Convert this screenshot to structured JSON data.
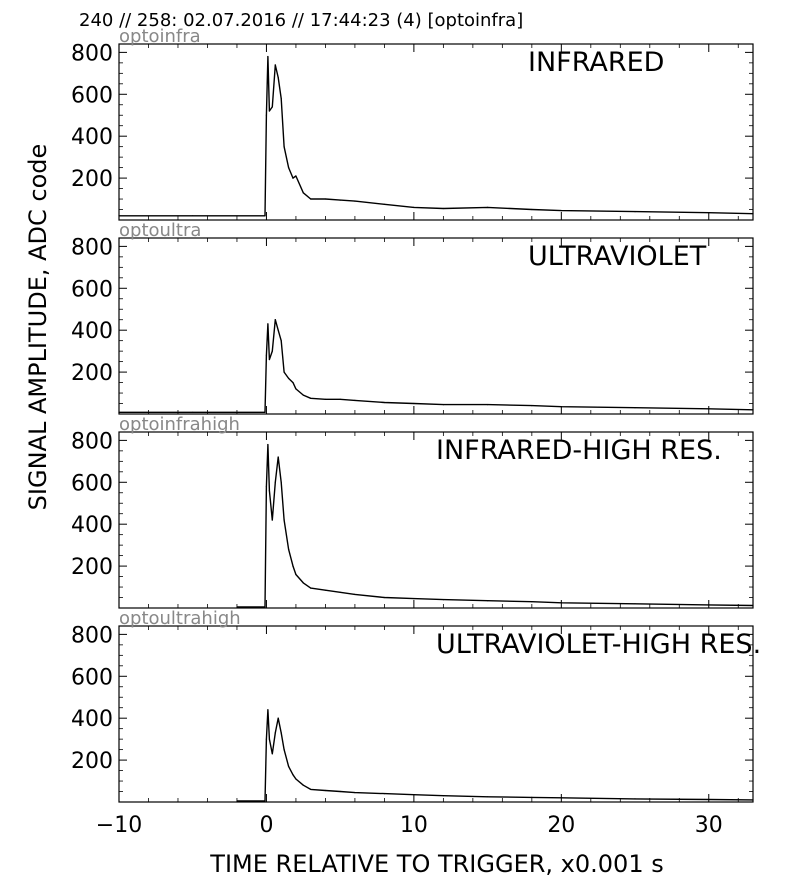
{
  "header": {
    "text": "240 // 258:   02.07.2016 // 17:44:23 (4)  [optoinfra]"
  },
  "ylabel": "SIGNAL AMPLITUDE,  ADC code",
  "xlabel": "TIME RELATIVE TO TRIGGER,   x0.001 s",
  "x_ticks": [
    "−10",
    "0",
    "10",
    "20",
    "30"
  ],
  "y_ticks": [
    "200",
    "400",
    "600",
    "800"
  ],
  "chart_data": [
    {
      "type": "line",
      "source": "optoinfra",
      "label": "INFRARED",
      "xlim": [
        -10,
        33
      ],
      "ylim": [
        0,
        840
      ],
      "series": [
        {
          "x": [
            -10,
            -5,
            -0.1,
            0,
            0.1,
            0.2,
            0.4,
            0.6,
            0.8,
            1.0,
            1.2,
            1.5,
            1.8,
            2.0,
            2.5,
            3,
            4,
            5,
            6,
            8,
            10,
            12,
            15,
            18,
            20,
            25,
            30,
            33
          ],
          "y": [
            20,
            20,
            20,
            500,
            780,
            520,
            540,
            740,
            680,
            580,
            350,
            250,
            200,
            210,
            130,
            100,
            100,
            95,
            90,
            75,
            60,
            55,
            60,
            50,
            45,
            40,
            35,
            30
          ]
        }
      ]
    },
    {
      "type": "line",
      "source": "optoultra",
      "label": "ULTRAVIOLET",
      "xlim": [
        -10,
        33
      ],
      "ylim": [
        0,
        840
      ],
      "series": [
        {
          "x": [
            -10,
            -5,
            -0.1,
            0,
            0.1,
            0.2,
            0.4,
            0.6,
            0.8,
            1.0,
            1.2,
            1.5,
            1.8,
            2.0,
            2.5,
            3,
            4,
            5,
            6,
            8,
            10,
            12,
            15,
            18,
            20,
            25,
            30,
            33
          ],
          "y": [
            8,
            8,
            8,
            280,
            430,
            260,
            300,
            450,
            400,
            350,
            200,
            170,
            150,
            120,
            90,
            75,
            70,
            70,
            65,
            55,
            50,
            45,
            45,
            40,
            35,
            30,
            25,
            20
          ]
        }
      ]
    },
    {
      "type": "line",
      "source": "optoinfrahigh",
      "label": "INFRARED-HIGH RES.",
      "xlim": [
        -10,
        33
      ],
      "ylim": [
        0,
        840
      ],
      "series": [
        {
          "x": [
            -2,
            -0.1,
            0,
            0.1,
            0.2,
            0.4,
            0.6,
            0.8,
            1.0,
            1.2,
            1.5,
            1.8,
            2.0,
            2.5,
            3,
            4,
            5,
            6,
            8,
            10,
            12,
            15,
            18,
            20,
            25,
            30,
            33
          ],
          "y": [
            5,
            5,
            580,
            780,
            560,
            420,
            600,
            720,
            600,
            420,
            280,
            200,
            160,
            120,
            95,
            85,
            75,
            65,
            50,
            45,
            40,
            35,
            30,
            25,
            20,
            15,
            12
          ]
        }
      ]
    },
    {
      "type": "line",
      "source": "optoultrahigh",
      "label": "ULTRAVIOLET-HIGH RES.",
      "xlim": [
        -10,
        33
      ],
      "ylim": [
        0,
        840
      ],
      "series": [
        {
          "x": [
            -2,
            -0.1,
            0,
            0.1,
            0.2,
            0.4,
            0.6,
            0.8,
            1.0,
            1.2,
            1.5,
            1.8,
            2.0,
            2.5,
            3,
            4,
            5,
            6,
            8,
            10,
            12,
            15,
            18,
            20,
            25,
            30,
            33
          ],
          "y": [
            5,
            5,
            300,
            440,
            300,
            230,
            330,
            400,
            330,
            250,
            170,
            130,
            110,
            80,
            60,
            55,
            50,
            45,
            40,
            35,
            30,
            25,
            22,
            20,
            15,
            12,
            10
          ]
        }
      ]
    }
  ]
}
